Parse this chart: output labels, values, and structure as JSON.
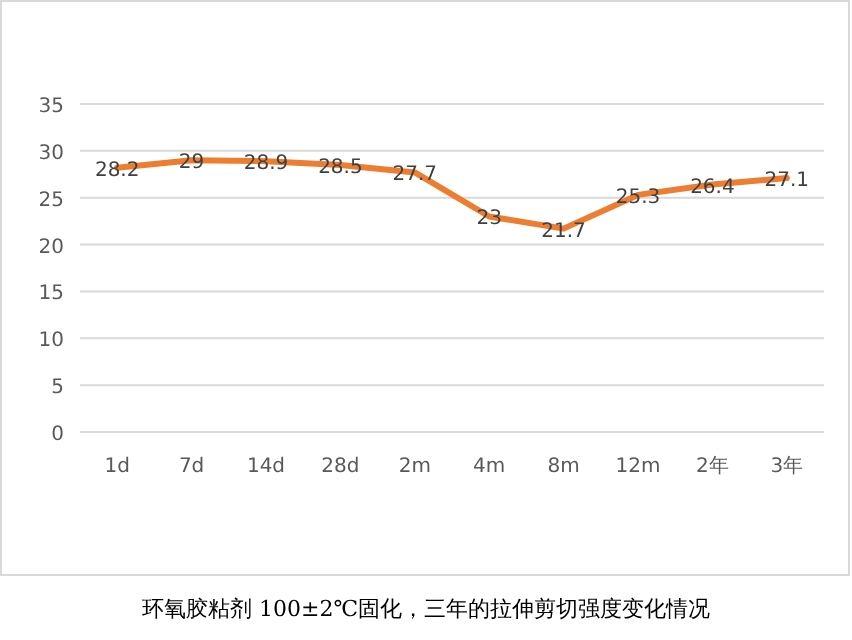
{
  "chart_data": {
    "type": "line",
    "categories": [
      "1d",
      "7d",
      "14d",
      "28d",
      "2m",
      "4m",
      "8m",
      "12m",
      "2年",
      "3年"
    ],
    "series": [
      {
        "color": "#ed7d31",
        "values": [
          28.2,
          29,
          28.9,
          28.5,
          27.7,
          23,
          21.7,
          25.3,
          26.4,
          27.1
        ]
      }
    ],
    "ylim": [
      0,
      35
    ],
    "yticks": [
      0,
      5,
      10,
      15,
      20,
      25,
      30,
      35
    ],
    "grid": "y",
    "data_labels": true,
    "marker": "none",
    "line_style": "solid",
    "annotations": [
      "环氧胶粘剂 100±2℃固化，三年的拉伸剪切强度变化情况"
    ]
  }
}
